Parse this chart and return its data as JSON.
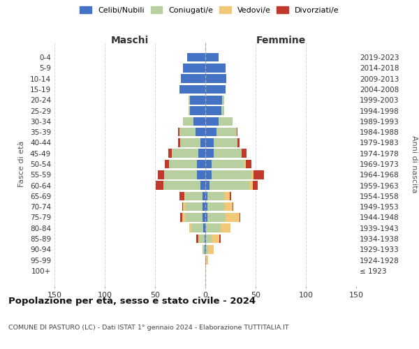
{
  "age_groups": [
    "0-4",
    "5-9",
    "10-14",
    "15-19",
    "20-24",
    "25-29",
    "30-34",
    "35-39",
    "40-44",
    "45-49",
    "50-54",
    "55-59",
    "60-64",
    "65-69",
    "70-74",
    "75-79",
    "80-84",
    "85-89",
    "90-94",
    "95-99",
    "100+"
  ],
  "birth_years": [
    "2019-2023",
    "2014-2018",
    "2009-2013",
    "2004-2008",
    "1999-2003",
    "1994-1998",
    "1989-1993",
    "1984-1988",
    "1979-1983",
    "1974-1978",
    "1969-1973",
    "1964-1968",
    "1959-1963",
    "1954-1958",
    "1949-1953",
    "1944-1948",
    "1939-1943",
    "1934-1938",
    "1929-1933",
    "1924-1928",
    "≤ 1923"
  ],
  "colors": {
    "celibi": "#4472c4",
    "coniugati": "#b8cfa0",
    "vedovi": "#f0c878",
    "divorziati": "#c0392b"
  },
  "maschi": {
    "celibi": [
      18,
      22,
      24,
      26,
      15,
      15,
      12,
      10,
      5,
      7,
      8,
      8,
      5,
      3,
      3,
      3,
      2,
      1,
      1,
      0,
      0
    ],
    "coniugati": [
      0,
      0,
      0,
      0,
      2,
      2,
      10,
      16,
      20,
      26,
      28,
      33,
      37,
      17,
      17,
      17,
      12,
      5,
      2,
      0,
      0
    ],
    "vedovi": [
      0,
      0,
      0,
      0,
      0,
      0,
      0,
      0,
      0,
      0,
      0,
      0,
      0,
      1,
      2,
      3,
      2,
      1,
      0,
      0,
      0
    ],
    "divorziati": [
      0,
      0,
      0,
      0,
      0,
      0,
      0,
      1,
      2,
      4,
      4,
      6,
      7,
      5,
      1,
      2,
      0,
      2,
      0,
      0,
      0
    ]
  },
  "femmine": {
    "celibi": [
      13,
      20,
      21,
      20,
      17,
      16,
      13,
      11,
      8,
      8,
      6,
      6,
      4,
      2,
      2,
      2,
      1,
      1,
      1,
      1,
      0
    ],
    "coniugati": [
      0,
      0,
      0,
      0,
      2,
      3,
      14,
      20,
      24,
      28,
      33,
      40,
      40,
      17,
      17,
      18,
      14,
      5,
      2,
      0,
      0
    ],
    "vedovi": [
      0,
      0,
      0,
      0,
      0,
      0,
      0,
      0,
      0,
      0,
      1,
      2,
      3,
      5,
      8,
      14,
      10,
      8,
      5,
      2,
      1
    ],
    "divorziati": [
      0,
      0,
      0,
      0,
      0,
      0,
      0,
      1,
      2,
      5,
      6,
      10,
      5,
      2,
      1,
      1,
      0,
      1,
      0,
      0,
      0
    ]
  },
  "xlim": 150,
  "title": "Popolazione per età, sesso e stato civile - 2024",
  "subtitle": "COMUNE DI PASTURO (LC) - Dati ISTAT 1° gennaio 2024 - Elaborazione TUTTITALIA.IT",
  "ylabel_left": "Fasce di età",
  "ylabel_right": "Anni di nascita",
  "xlabel_left": "Maschi",
  "xlabel_right": "Femmine",
  "legend_labels": [
    "Celibi/Nubili",
    "Coniugati/e",
    "Vedovi/e",
    "Divorziati/e"
  ],
  "bg_color": "#ffffff"
}
